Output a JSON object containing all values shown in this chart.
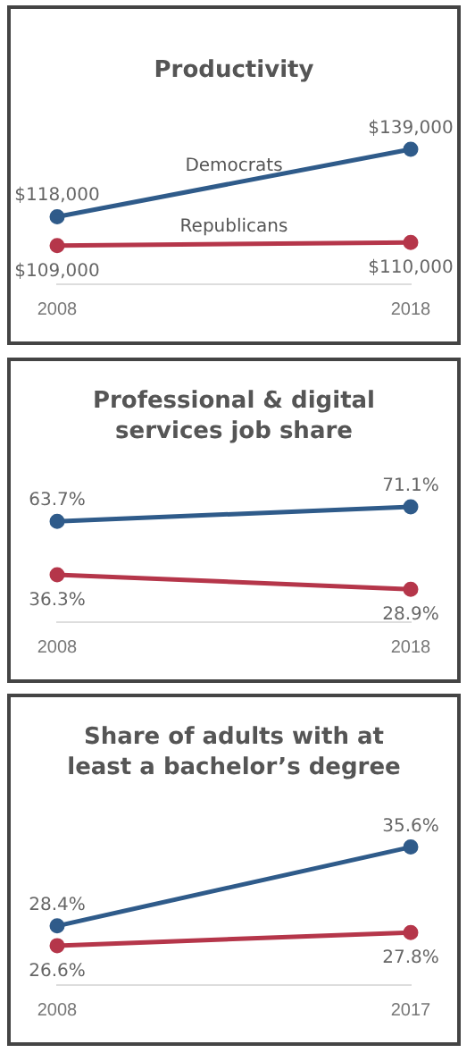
{
  "chart_data": [
    {
      "type": "line",
      "title": "Productivity",
      "categories": [
        "2008",
        "2018"
      ],
      "marker": "circle",
      "grid": false,
      "legend": false,
      "series": [
        {
          "name": "Democrats",
          "color": "#2f5b8a",
          "values": [
            118000,
            139000
          ],
          "value_labels": [
            "$118,000",
            "$139,000"
          ]
        },
        {
          "name": "Republicans",
          "color": "#b5364a",
          "values": [
            109000,
            110000
          ],
          "value_labels": [
            "$109,000",
            "$110,000"
          ]
        }
      ]
    },
    {
      "type": "line",
      "title": "Professional & digital services job share",
      "categories": [
        "2008",
        "2018"
      ],
      "marker": "circle",
      "grid": false,
      "legend": false,
      "series": [
        {
          "color": "#2f5b8a",
          "values": [
            63.7,
            71.1
          ],
          "value_labels": [
            "63.7%",
            "71.1%"
          ]
        },
        {
          "color": "#b5364a",
          "values": [
            36.3,
            28.9
          ],
          "value_labels": [
            "36.3%",
            "28.9%"
          ]
        }
      ]
    },
    {
      "type": "line",
      "title": "Share of adults with at least a bachelor’s degree",
      "categories": [
        "2008",
        "2017"
      ],
      "marker": "circle",
      "grid": false,
      "legend": false,
      "series": [
        {
          "color": "#2f5b8a",
          "values": [
            28.4,
            35.6
          ],
          "value_labels": [
            "28.4%",
            "35.6%"
          ]
        },
        {
          "color": "#b5364a",
          "values": [
            26.6,
            27.8
          ],
          "value_labels": [
            "26.6%",
            "27.8%"
          ]
        }
      ]
    }
  ]
}
